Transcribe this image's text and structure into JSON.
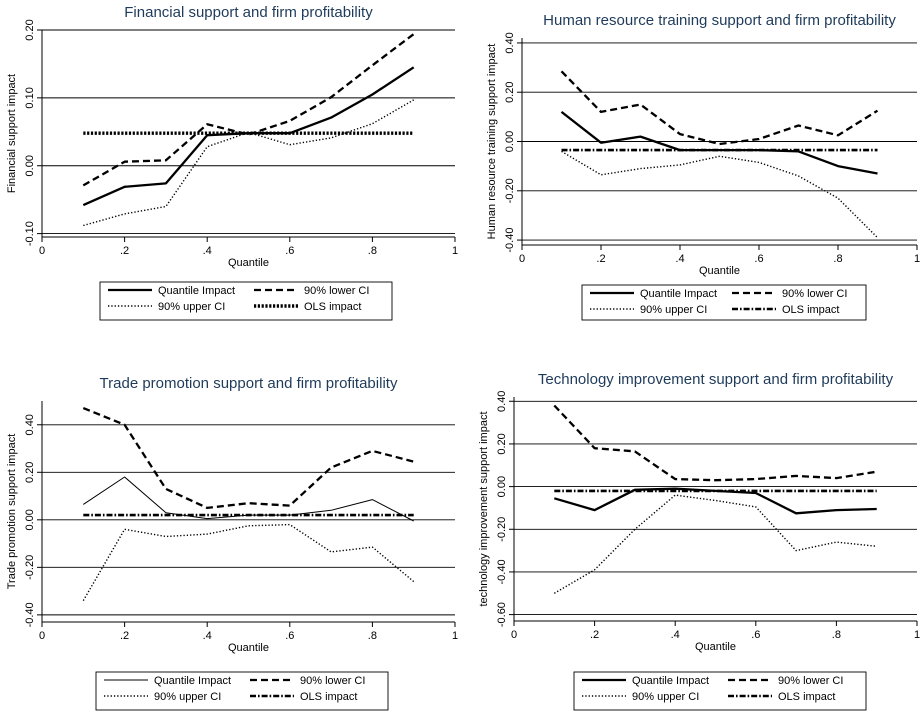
{
  "chart_data": [
    {
      "type": "line",
      "title": "Financial support and firm profitability",
      "xlabel": "Quantile",
      "ylabel": "Financial support impact",
      "xlim": [
        0,
        1
      ],
      "ylim": [
        -0.105,
        0.2
      ],
      "xticks": [
        0,
        0.2,
        0.4,
        0.6,
        0.8,
        1
      ],
      "xtick_labels": [
        "0",
        ".2",
        ".4",
        ".6",
        ".8",
        "1"
      ],
      "yticks": [
        -0.1,
        0,
        0.1,
        0.2
      ],
      "ytick_labels": [
        "-0.10",
        "0.00",
        "0.10",
        "0.20"
      ],
      "grid": true,
      "x": [
        0.1,
        0.2,
        0.3,
        0.4,
        0.5,
        0.6,
        0.7,
        0.8,
        0.9
      ],
      "series": [
        {
          "name": "Quantile Impact",
          "style": "solid",
          "values": [
            -0.058,
            -0.031,
            -0.026,
            0.045,
            0.048,
            0.048,
            0.071,
            0.105,
            0.145
          ]
        },
        {
          "name": "90% lower CI",
          "style": "dashed",
          "values": [
            -0.029,
            0.006,
            0.008,
            0.061,
            0.046,
            0.066,
            0.101,
            0.148,
            0.194
          ]
        },
        {
          "name": "90% upper CI",
          "style": "dotted",
          "values": [
            -0.088,
            -0.071,
            -0.06,
            0.028,
            0.049,
            0.031,
            0.041,
            0.062,
            0.097
          ]
        },
        {
          "name": "OLS impact",
          "style": "thickdot",
          "values": [
            0.048,
            0.048,
            0.048,
            0.048,
            0.048,
            0.048,
            0.048,
            0.048,
            0.048
          ]
        }
      ]
    },
    {
      "type": "line",
      "title": "Human resource training support and firm profitability",
      "xlabel": "Quantile",
      "ylabel": "Human resource training support impact",
      "xlim": [
        0,
        1
      ],
      "ylim": [
        -0.42,
        0.42
      ],
      "xticks": [
        0,
        0.2,
        0.4,
        0.6,
        0.8,
        1
      ],
      "xtick_labels": [
        "0",
        ".2",
        ".4",
        ".6",
        ".8",
        "1"
      ],
      "yticks": [
        -0.4,
        -0.2,
        0,
        0.2,
        0.4
      ],
      "ytick_labels": [
        "-0.40",
        "-0.20",
        "0.00",
        "0.20",
        "0.40"
      ],
      "grid": true,
      "x": [
        0.1,
        0.2,
        0.3,
        0.4,
        0.5,
        0.6,
        0.7,
        0.8,
        0.9
      ],
      "series": [
        {
          "name": "Quantile Impact",
          "style": "solid",
          "values": [
            0.12,
            -0.005,
            0.02,
            -0.035,
            -0.035,
            -0.035,
            -0.04,
            -0.1,
            -0.13
          ]
        },
        {
          "name": "90% lower CI",
          "style": "dashed",
          "values": [
            0.285,
            0.12,
            0.15,
            0.03,
            -0.01,
            0.01,
            0.065,
            0.025,
            0.125
          ]
        },
        {
          "name": "90% upper CI",
          "style": "dotted",
          "values": [
            -0.04,
            -0.135,
            -0.11,
            -0.095,
            -0.06,
            -0.085,
            -0.14,
            -0.23,
            -0.39
          ]
        },
        {
          "name": "OLS impact",
          "style": "dashdot",
          "values": [
            -0.035,
            -0.035,
            -0.035,
            -0.035,
            -0.035,
            -0.035,
            -0.035,
            -0.035,
            -0.035
          ]
        }
      ]
    },
    {
      "type": "line",
      "title": "Trade promotion support and firm profitability",
      "xlabel": "Quantile",
      "ylabel": "Trade promotion support impact",
      "xlim": [
        0,
        1
      ],
      "ylim": [
        -0.43,
        0.5
      ],
      "xticks": [
        0,
        0.2,
        0.4,
        0.6,
        0.8,
        1
      ],
      "xtick_labels": [
        "0",
        ".2",
        ".4",
        ".6",
        ".8",
        "1"
      ],
      "yticks": [
        -0.4,
        -0.2,
        0,
        0.2,
        0.4
      ],
      "ytick_labels": [
        "-0.40",
        "-0.20",
        "0.00",
        "0.20",
        "0.40"
      ],
      "grid": true,
      "x": [
        0.1,
        0.2,
        0.3,
        0.4,
        0.5,
        0.6,
        0.7,
        0.8,
        0.9
      ],
      "series": [
        {
          "name": "Quantile Impact",
          "style": "thin",
          "values": [
            0.065,
            0.18,
            0.03,
            0.005,
            0.02,
            0.02,
            0.04,
            0.085,
            -0.005
          ]
        },
        {
          "name": "90% lower CI",
          "style": "dashed",
          "values": [
            0.47,
            0.4,
            0.13,
            0.05,
            0.07,
            0.06,
            0.22,
            0.29,
            0.245
          ]
        },
        {
          "name": "90% upper CI",
          "style": "dotted",
          "values": [
            -0.34,
            -0.04,
            -0.07,
            -0.06,
            -0.025,
            -0.02,
            -0.135,
            -0.115,
            -0.26
          ]
        },
        {
          "name": "OLS impact",
          "style": "dashdot",
          "values": [
            0.02,
            0.02,
            0.02,
            0.02,
            0.02,
            0.02,
            0.02,
            0.02,
            0.02
          ]
        }
      ]
    },
    {
      "type": "line",
      "title": "Technology improvement support and firm profitability",
      "xlabel": "Quantile",
      "ylabel": "technology improvement support impact",
      "xlim": [
        0,
        1
      ],
      "ylim": [
        -0.63,
        0.42
      ],
      "xticks": [
        0,
        0.2,
        0.4,
        0.6,
        0.8,
        1
      ],
      "xtick_labels": [
        "0",
        ".2",
        ".4",
        ".6",
        ".8",
        "1"
      ],
      "yticks": [
        -0.6,
        -0.4,
        -0.2,
        0,
        0.2,
        0.4
      ],
      "ytick_labels": [
        "-0.60",
        "-0.40",
        "-0.20",
        "0.00",
        "0.20",
        "0.40"
      ],
      "grid": true,
      "x": [
        0.1,
        0.2,
        0.3,
        0.4,
        0.5,
        0.6,
        0.7,
        0.8,
        0.9
      ],
      "series": [
        {
          "name": "Quantile Impact",
          "style": "solid",
          "values": [
            -0.055,
            -0.11,
            -0.015,
            -0.01,
            -0.02,
            -0.03,
            -0.125,
            -0.11,
            -0.105
          ]
        },
        {
          "name": "90% lower CI",
          "style": "dashed",
          "values": [
            0.38,
            0.18,
            0.165,
            0.035,
            0.03,
            0.035,
            0.05,
            0.04,
            0.07
          ]
        },
        {
          "name": "90% upper CI",
          "style": "dotted",
          "values": [
            -0.5,
            -0.39,
            -0.2,
            -0.04,
            -0.065,
            -0.095,
            -0.3,
            -0.26,
            -0.28
          ]
        },
        {
          "name": "OLS impact",
          "style": "dashdot",
          "values": [
            -0.02,
            -0.02,
            -0.02,
            -0.02,
            -0.02,
            -0.02,
            -0.02,
            -0.02,
            -0.02
          ]
        }
      ]
    }
  ]
}
